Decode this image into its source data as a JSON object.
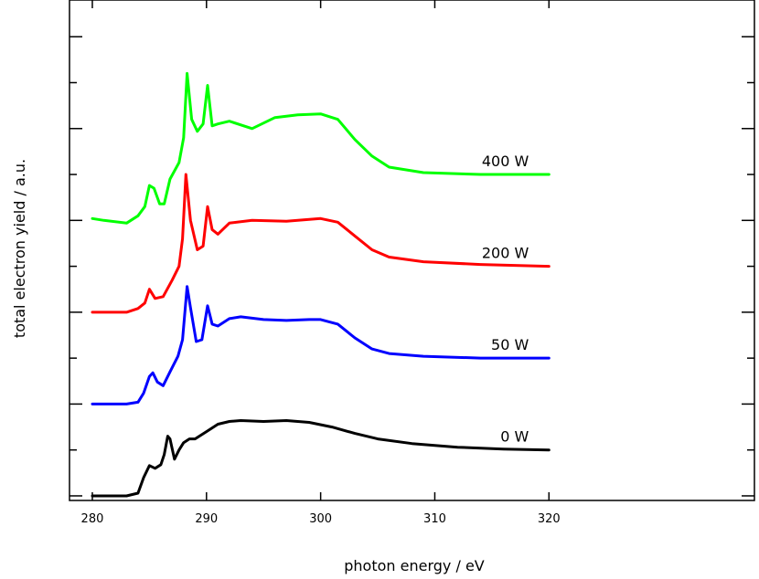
{
  "chart_data": {
    "type": "line",
    "title": "",
    "xlabel": "photon energy / eV",
    "ylabel": "total electron yield / a.u.",
    "xlim": [
      278,
      338
    ],
    "ylim": [
      -0.05,
      5.4
    ],
    "x_ticks": [
      280,
      290,
      300,
      310,
      320
    ],
    "x_tick_labels": [
      "280",
      "290",
      "300",
      "310",
      "320"
    ],
    "y_ticks": [
      0,
      0.5,
      1.0,
      1.5,
      2.0,
      2.5,
      3.0,
      3.5,
      4.0,
      4.5,
      5.0
    ],
    "grid": false,
    "legend": "none",
    "series": [
      {
        "name": "0 W",
        "color": "#000000",
        "points": [
          [
            280,
            0
          ],
          [
            283,
            0
          ],
          [
            284,
            0.03
          ],
          [
            284.5,
            0.2
          ],
          [
            285,
            0.33
          ],
          [
            285.5,
            0.3
          ],
          [
            286,
            0.34
          ],
          [
            286.3,
            0.45
          ],
          [
            286.6,
            0.65
          ],
          [
            286.8,
            0.62
          ],
          [
            287.2,
            0.4
          ],
          [
            287.6,
            0.5
          ],
          [
            288,
            0.58
          ],
          [
            288.5,
            0.62
          ],
          [
            289,
            0.62
          ],
          [
            290,
            0.7
          ],
          [
            291,
            0.78
          ],
          [
            292,
            0.81
          ],
          [
            293,
            0.82
          ],
          [
            295,
            0.81
          ],
          [
            297,
            0.82
          ],
          [
            299,
            0.8
          ],
          [
            301,
            0.75
          ],
          [
            303,
            0.68
          ],
          [
            305,
            0.62
          ],
          [
            308,
            0.57
          ],
          [
            312,
            0.53
          ],
          [
            316,
            0.51
          ],
          [
            320,
            0.5
          ]
        ]
      },
      {
        "name": "50 W",
        "color": "#0000ff",
        "points": [
          [
            280,
            1.0
          ],
          [
            283,
            1.0
          ],
          [
            284,
            1.02
          ],
          [
            284.5,
            1.12
          ],
          [
            285,
            1.3
          ],
          [
            285.3,
            1.34
          ],
          [
            285.7,
            1.24
          ],
          [
            286.2,
            1.2
          ],
          [
            286.8,
            1.35
          ],
          [
            287.5,
            1.52
          ],
          [
            287.9,
            1.7
          ],
          [
            288.3,
            2.28
          ],
          [
            288.6,
            2.05
          ],
          [
            289.1,
            1.68
          ],
          [
            289.6,
            1.7
          ],
          [
            290.1,
            2.07
          ],
          [
            290.5,
            1.87
          ],
          [
            291,
            1.85
          ],
          [
            292,
            1.93
          ],
          [
            293,
            1.95
          ],
          [
            295,
            1.92
          ],
          [
            297,
            1.91
          ],
          [
            299,
            1.92
          ],
          [
            300,
            1.92
          ],
          [
            301.5,
            1.87
          ],
          [
            303,
            1.72
          ],
          [
            304.5,
            1.6
          ],
          [
            306,
            1.55
          ],
          [
            309,
            1.52
          ],
          [
            314,
            1.5
          ],
          [
            320,
            1.5
          ]
        ]
      },
      {
        "name": "200 W",
        "color": "#ff0000",
        "points": [
          [
            280,
            2.0
          ],
          [
            283,
            2.0
          ],
          [
            284,
            2.04
          ],
          [
            284.6,
            2.1
          ],
          [
            285,
            2.25
          ],
          [
            285.5,
            2.15
          ],
          [
            286.2,
            2.17
          ],
          [
            287,
            2.35
          ],
          [
            287.6,
            2.5
          ],
          [
            287.9,
            2.8
          ],
          [
            288.2,
            3.5
          ],
          [
            288.6,
            3.0
          ],
          [
            289.2,
            2.68
          ],
          [
            289.7,
            2.72
          ],
          [
            290.1,
            3.15
          ],
          [
            290.5,
            2.9
          ],
          [
            291,
            2.85
          ],
          [
            292,
            2.97
          ],
          [
            294,
            3.0
          ],
          [
            297,
            2.99
          ],
          [
            300,
            3.02
          ],
          [
            301.5,
            2.98
          ],
          [
            303,
            2.83
          ],
          [
            304.5,
            2.68
          ],
          [
            306,
            2.6
          ],
          [
            309,
            2.55
          ],
          [
            314,
            2.52
          ],
          [
            320,
            2.5
          ]
        ]
      },
      {
        "name": "400 W",
        "color": "#00ff00",
        "points": [
          [
            280,
            3.02
          ],
          [
            281,
            3.0
          ],
          [
            283,
            2.97
          ],
          [
            284,
            3.05
          ],
          [
            284.6,
            3.15
          ],
          [
            285,
            3.38
          ],
          [
            285.4,
            3.35
          ],
          [
            285.9,
            3.18
          ],
          [
            286.3,
            3.18
          ],
          [
            286.8,
            3.45
          ],
          [
            287.6,
            3.63
          ],
          [
            288,
            3.9
          ],
          [
            288.3,
            4.6
          ],
          [
            288.7,
            4.1
          ],
          [
            289.2,
            3.97
          ],
          [
            289.7,
            4.05
          ],
          [
            290.1,
            4.47
          ],
          [
            290.5,
            4.03
          ],
          [
            291,
            4.05
          ],
          [
            292,
            4.08
          ],
          [
            294,
            4.0
          ],
          [
            296,
            4.12
          ],
          [
            298,
            4.15
          ],
          [
            300,
            4.16
          ],
          [
            301.5,
            4.1
          ],
          [
            303,
            3.88
          ],
          [
            304.5,
            3.7
          ],
          [
            306,
            3.58
          ],
          [
            309,
            3.52
          ],
          [
            314,
            3.5
          ],
          [
            320,
            3.5
          ]
        ]
      }
    ]
  }
}
